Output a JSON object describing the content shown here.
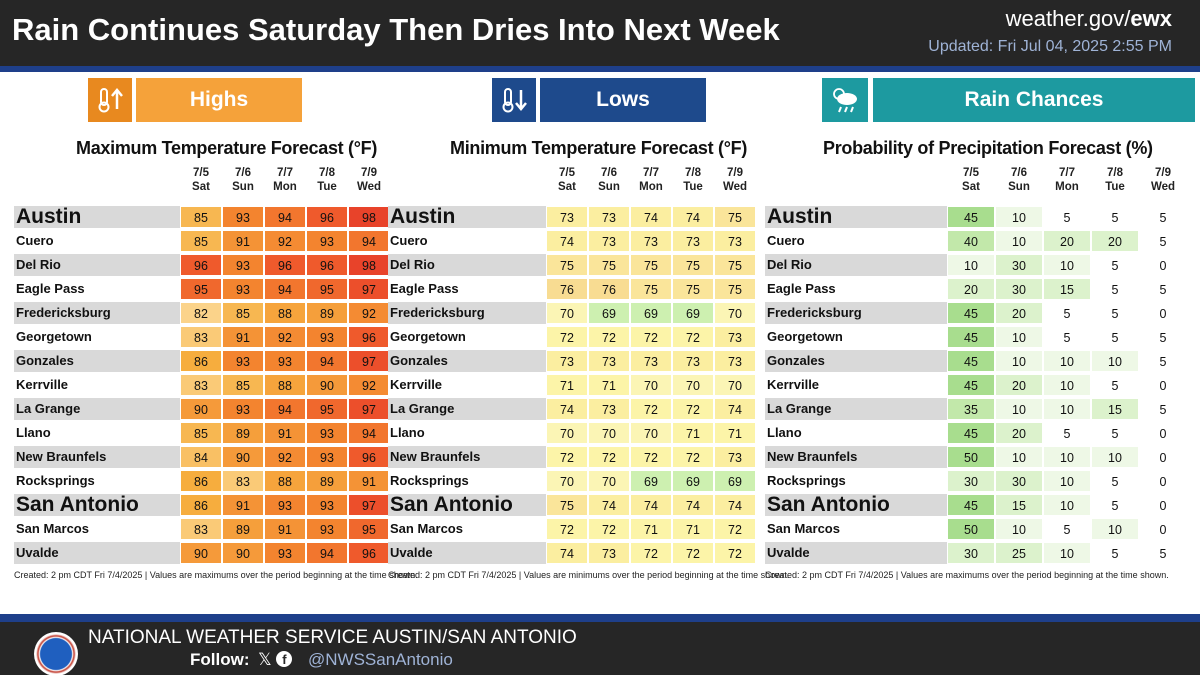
{
  "header": {
    "title": "Rain Continues Saturday Then Dries Into Next Week",
    "site_prefix": "weather.gov/",
    "site_bold": "ewx",
    "updated": "Updated: Fri Jul 04, 2025 2:55 PM"
  },
  "sections": {
    "highs": {
      "label": "Highs",
      "icon": "thermometer-up-icon",
      "color": "#f5a23a",
      "icon_color": "#e8891f"
    },
    "lows": {
      "label": "Lows",
      "icon": "thermometer-down-icon",
      "color": "#1e4a8c",
      "icon_color": "#1e4a8c"
    },
    "rain": {
      "label": "Rain Chances",
      "icon": "cloud-rain-icon",
      "color": "#1d9aa0",
      "icon_color": "#1d9aa0"
    }
  },
  "columns": {
    "dates": [
      "7/5",
      "7/6",
      "7/7",
      "7/8",
      "7/9"
    ],
    "days": [
      "Sat",
      "Sun",
      "Mon",
      "Tue",
      "Wed"
    ]
  },
  "cities": [
    "Austin",
    "Cuero",
    "Del Rio",
    "Eagle Pass",
    "Fredericksburg",
    "Georgetown",
    "Gonzales",
    "Kerrville",
    "La Grange",
    "Llano",
    "New Braunfels",
    "Rocksprings",
    "San Antonio",
    "San Marcos",
    "Uvalde"
  ],
  "big_cities": [
    "Austin",
    "San Antonio"
  ],
  "max_temp": {
    "title": "Maximum Temperature Forecast (°F)",
    "values": [
      [
        85,
        93,
        94,
        96,
        98
      ],
      [
        85,
        91,
        92,
        93,
        94
      ],
      [
        96,
        93,
        96,
        96,
        98
      ],
      [
        95,
        93,
        94,
        95,
        97
      ],
      [
        82,
        85,
        88,
        89,
        92
      ],
      [
        83,
        91,
        92,
        93,
        96
      ],
      [
        86,
        93,
        93,
        94,
        97
      ],
      [
        83,
        85,
        88,
        90,
        92
      ],
      [
        90,
        93,
        94,
        95,
        97
      ],
      [
        85,
        89,
        91,
        93,
        94
      ],
      [
        84,
        90,
        92,
        93,
        96
      ],
      [
        86,
        83,
        88,
        89,
        91
      ],
      [
        86,
        91,
        93,
        93,
        97
      ],
      [
        83,
        89,
        91,
        93,
        95
      ],
      [
        90,
        90,
        93,
        94,
        96
      ]
    ],
    "note": "Created: 2 pm CDT Fri 7/4/2025  |  Values are maximums over the period beginning at the time shown."
  },
  "min_temp": {
    "title": "Minimum Temperature Forecast (°F)",
    "values": [
      [
        73,
        73,
        74,
        74,
        75
      ],
      [
        74,
        73,
        73,
        73,
        73
      ],
      [
        75,
        75,
        75,
        75,
        75
      ],
      [
        76,
        76,
        75,
        75,
        75
      ],
      [
        70,
        69,
        69,
        69,
        70
      ],
      [
        72,
        72,
        72,
        72,
        73
      ],
      [
        73,
        73,
        73,
        73,
        73
      ],
      [
        71,
        71,
        70,
        70,
        70
      ],
      [
        74,
        73,
        72,
        72,
        74
      ],
      [
        70,
        70,
        70,
        71,
        71
      ],
      [
        72,
        72,
        72,
        72,
        73
      ],
      [
        70,
        70,
        69,
        69,
        69
      ],
      [
        75,
        74,
        74,
        74,
        74
      ],
      [
        72,
        72,
        71,
        71,
        72
      ],
      [
        74,
        73,
        72,
        72,
        72
      ]
    ],
    "note": "Created: 2 pm CDT Fri 7/4/2025  |  Values are minimums over the period beginning at the time shown."
  },
  "pop": {
    "title": "Probability of Precipitation Forecast (%)",
    "values": [
      [
        45,
        10,
        5,
        5,
        5
      ],
      [
        40,
        10,
        20,
        20,
        5
      ],
      [
        10,
        30,
        10,
        5,
        0
      ],
      [
        20,
        30,
        15,
        5,
        5
      ],
      [
        45,
        20,
        5,
        5,
        0
      ],
      [
        45,
        10,
        5,
        5,
        5
      ],
      [
        45,
        10,
        10,
        10,
        5
      ],
      [
        45,
        20,
        10,
        5,
        0
      ],
      [
        35,
        10,
        10,
        15,
        5
      ],
      [
        45,
        20,
        5,
        5,
        0
      ],
      [
        50,
        10,
        10,
        10,
        0
      ],
      [
        30,
        30,
        10,
        5,
        0
      ],
      [
        45,
        15,
        10,
        5,
        0
      ],
      [
        50,
        10,
        5,
        10,
        0
      ],
      [
        30,
        25,
        10,
        5,
        5
      ]
    ],
    "note": "Created: 2 pm CDT Fri 7/4/2025  |  Values are maximums over the period beginning at the time shown."
  },
  "footer": {
    "office": "NATIONAL WEATHER SERVICE AUSTIN/SAN ANTONIO",
    "follow": "Follow:",
    "social_icons": [
      "x-icon",
      "facebook-icon"
    ],
    "handle": "@NWSSanAntonio"
  }
}
